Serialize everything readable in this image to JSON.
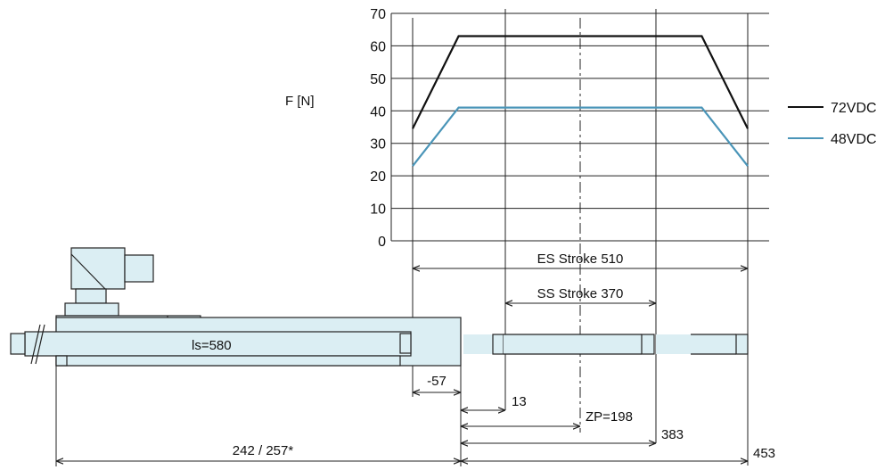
{
  "chart_data": {
    "type": "line",
    "ylabel": "F [N]",
    "ylim": [
      0,
      70
    ],
    "yticks": [
      "0",
      "10",
      "20",
      "30",
      "40",
      "50",
      "60",
      "70"
    ],
    "x": [
      -57,
      13,
      383,
      453
    ],
    "xlim": [
      -57,
      453
    ],
    "grid": true,
    "legend_position": "right",
    "series": [
      {
        "name": "72VDC",
        "color": "#111111",
        "values": [
          34.5,
          63,
          63,
          34.5
        ]
      },
      {
        "name": "48VDC",
        "color": "#4a95b8",
        "values": [
          23,
          41,
          41,
          23
        ]
      }
    ]
  },
  "dimensions": {
    "es_stroke": "ES Stroke 510",
    "ss_stroke": "SS Stroke 370",
    "ls": "ls=580",
    "neg57": "-57",
    "d13": "13",
    "zp": "ZP=198",
    "d383": "383",
    "d453": "453",
    "d242": "242 / 257*"
  },
  "colors": {
    "actuator_fill": "#dbeef3",
    "outline": "#222222"
  }
}
